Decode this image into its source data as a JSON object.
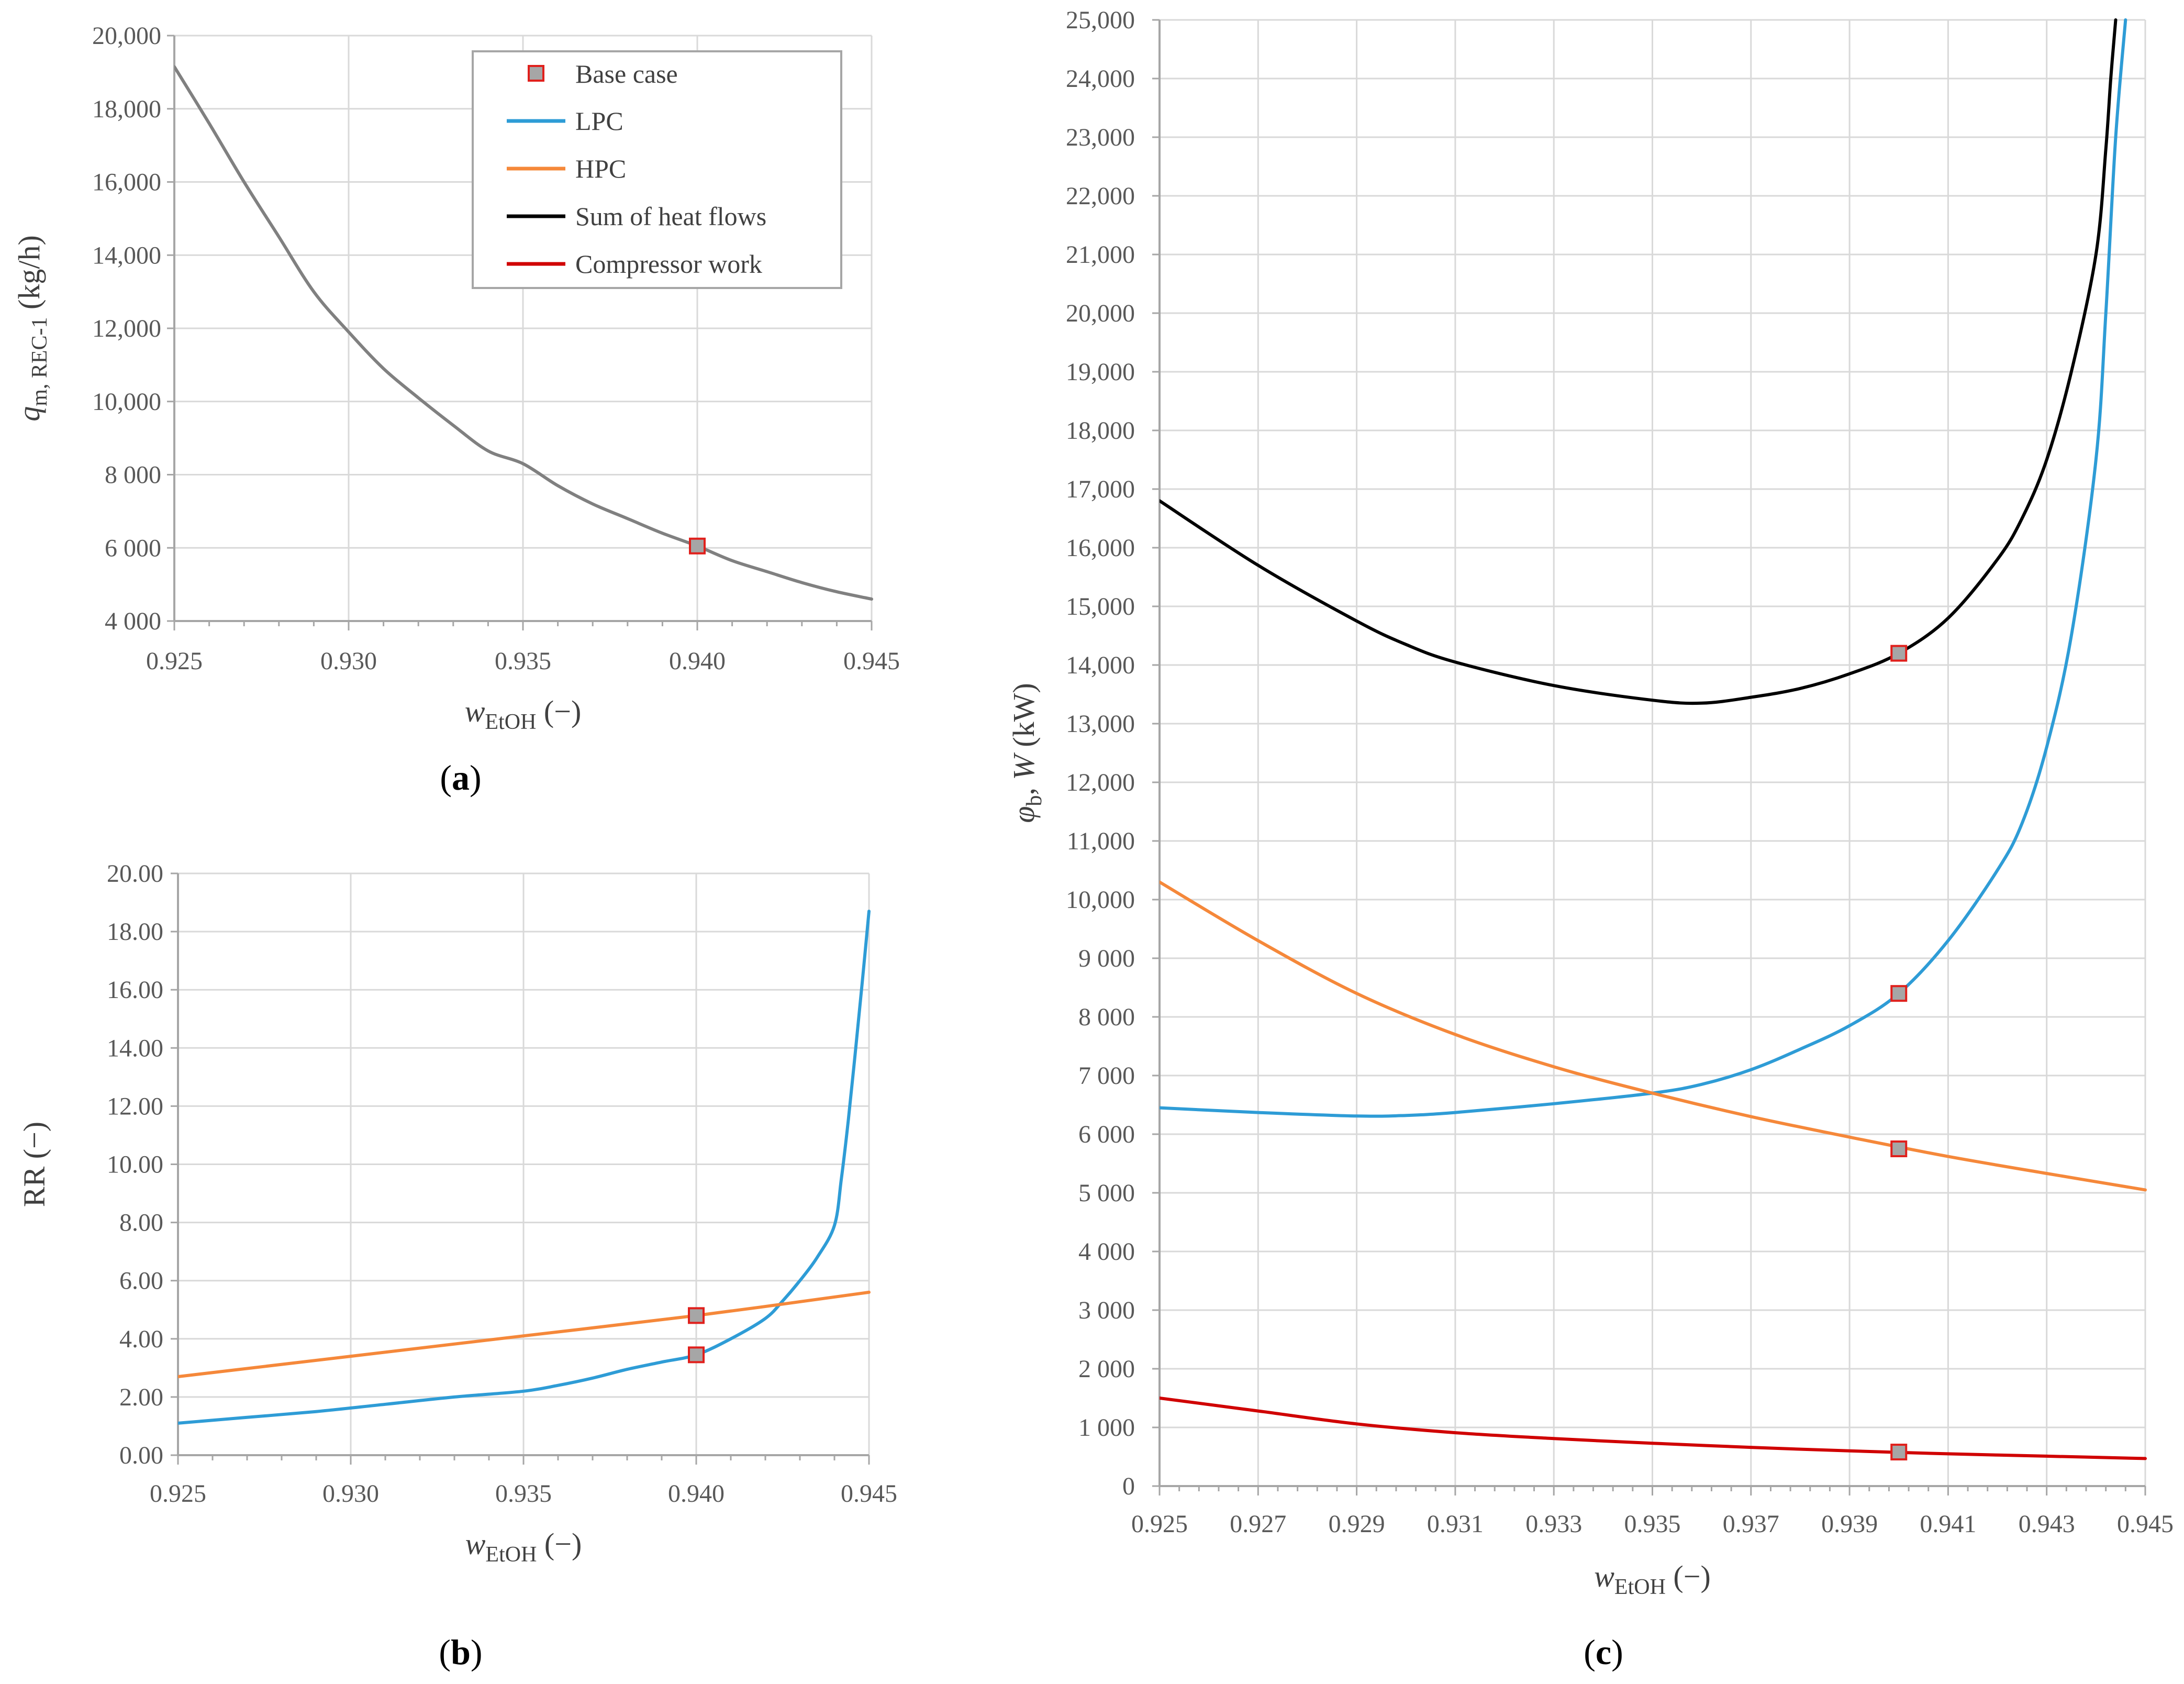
{
  "colors": {
    "lpc": "#2e9cd6",
    "hpc": "#f5883a",
    "sum": "#000000",
    "work": "#d00000",
    "qm": "#808080",
    "marker_fill": "#a6a6a6",
    "marker_edge": "#e0201c"
  },
  "panels": {
    "a": {
      "open": "(",
      "letter": "a",
      "close": ")"
    },
    "b": {
      "open": "(",
      "letter": "b",
      "close": ")"
    },
    "c": {
      "open": "(",
      "letter": "c",
      "close": ")"
    }
  },
  "legend": {
    "base_case": "Base case",
    "lpc": "LPC",
    "hpc": "HPC",
    "sum": "Sum of heat flows",
    "work": "Compressor work"
  },
  "chart_data": [
    {
      "id": "a",
      "type": "line",
      "title": "",
      "xlabel": {
        "main": "w",
        "sub": "EtOH",
        "unit": " (−)"
      },
      "ylabel": {
        "main": "q",
        "sub": "m, REC-1",
        "unit": " (kg/h)"
      },
      "xlim": [
        0.925,
        0.945
      ],
      "ylim": [
        4000,
        20000
      ],
      "xticks": [
        0.925,
        0.93,
        0.935,
        0.94,
        0.945
      ],
      "xtick_labels": [
        "0.925",
        "0.930",
        "0.935",
        "0.940",
        "0.945"
      ],
      "yticks": [
        4000,
        6000,
        8000,
        10000,
        12000,
        14000,
        16000,
        18000,
        20000
      ],
      "ytick_labels": [
        "4 000",
        "6 000",
        "8 000",
        "10,000",
        "12,000",
        "14,000",
        "16,000",
        "18,000",
        "20,000"
      ],
      "series": [
        {
          "name": "q_m,REC-1",
          "color_key": "qm",
          "x": [
            0.925,
            0.926,
            0.927,
            0.928,
            0.929,
            0.93,
            0.931,
            0.932,
            0.933,
            0.934,
            0.935,
            0.936,
            0.937,
            0.938,
            0.939,
            0.94,
            0.941,
            0.942,
            0.943,
            0.944,
            0.945
          ],
          "y": [
            19150,
            17600,
            16000,
            14500,
            13000,
            11900,
            10900,
            10100,
            9350,
            8650,
            8300,
            7700,
            7200,
            6800,
            6400,
            6050,
            5650,
            5350,
            5050,
            4800,
            4600
          ]
        }
      ],
      "base_case": [
        {
          "x": 0.94,
          "y": 6050
        }
      ]
    },
    {
      "id": "b",
      "type": "line",
      "title": "",
      "xlabel": {
        "main": "w",
        "sub": "EtOH",
        "unit": " (−)"
      },
      "ylabel": {
        "main": "RR",
        "sub": "",
        "unit": " (−)"
      },
      "xlim": [
        0.925,
        0.945
      ],
      "ylim": [
        0,
        20
      ],
      "xticks": [
        0.925,
        0.93,
        0.935,
        0.94,
        0.945
      ],
      "xtick_labels": [
        "0.925",
        "0.930",
        "0.935",
        "0.940",
        "0.945"
      ],
      "yticks": [
        0,
        2,
        4,
        6,
        8,
        10,
        12,
        14,
        16,
        18,
        20
      ],
      "ytick_labels": [
        "0.00",
        "2.00",
        "4.00",
        "6.00",
        "8.00",
        "10.00",
        "12.00",
        "14.00",
        "16.00",
        "18.00",
        "20.00"
      ],
      "series": [
        {
          "name": "LPC",
          "color_key": "lpc",
          "x": [
            0.925,
            0.927,
            0.929,
            0.931,
            0.933,
            0.935,
            0.936,
            0.937,
            0.938,
            0.939,
            0.94,
            0.941,
            0.942,
            0.9425,
            0.943,
            0.9435,
            0.944,
            0.9442,
            0.9444,
            0.9446,
            0.9448,
            0.945
          ],
          "y": [
            1.1,
            1.3,
            1.5,
            1.75,
            2.0,
            2.2,
            2.4,
            2.65,
            2.95,
            3.2,
            3.45,
            4.0,
            4.7,
            5.3,
            6.0,
            6.8,
            7.9,
            9.5,
            11.5,
            13.8,
            16.2,
            18.7
          ]
        },
        {
          "name": "HPC",
          "color_key": "hpc",
          "x": [
            0.925,
            0.93,
            0.935,
            0.94,
            0.945
          ],
          "y": [
            2.7,
            3.4,
            4.1,
            4.8,
            5.6
          ]
        }
      ],
      "base_case": [
        {
          "x": 0.94,
          "y": 4.8
        },
        {
          "x": 0.94,
          "y": 3.45
        }
      ]
    },
    {
      "id": "c",
      "type": "line",
      "title": "",
      "xlabel": {
        "main": "w",
        "sub": "EtOH",
        "unit": " (−)"
      },
      "ylabel": {
        "main": "φ",
        "sub": "b",
        "unit": ", W (kW)"
      },
      "xlim": [
        0.925,
        0.945
      ],
      "ylim": [
        0,
        25000
      ],
      "xticks": [
        0.925,
        0.927,
        0.929,
        0.931,
        0.933,
        0.935,
        0.937,
        0.939,
        0.941,
        0.943,
        0.945
      ],
      "xtick_labels": [
        "0.925",
        "0.927",
        "0.929",
        "0.931",
        "0.933",
        "0.935",
        "0.937",
        "0.939",
        "0.941",
        "0.943",
        "0.945"
      ],
      "yticks": [
        0,
        1000,
        2000,
        3000,
        4000,
        5000,
        6000,
        7000,
        8000,
        9000,
        10000,
        11000,
        12000,
        13000,
        14000,
        15000,
        16000,
        17000,
        18000,
        19000,
        20000,
        21000,
        22000,
        23000,
        24000,
        25000
      ],
      "ytick_labels": [
        "0",
        "1 000",
        "2 000",
        "3 000",
        "4 000",
        "5 000",
        "6 000",
        "7 000",
        "8 000",
        "9 000",
        "10,000",
        "11,000",
        "12,000",
        "13,000",
        "14,000",
        "15,000",
        "16,000",
        "17,000",
        "18,000",
        "19,000",
        "20,000",
        "21,000",
        "22,000",
        "23,000",
        "24,000",
        "25,000"
      ],
      "series": [
        {
          "name": "LPC",
          "color_key": "lpc",
          "x": [
            0.925,
            0.927,
            0.929,
            0.93,
            0.931,
            0.933,
            0.935,
            0.936,
            0.937,
            0.938,
            0.939,
            0.94,
            0.941,
            0.942,
            0.9425,
            0.943,
            0.9435,
            0.944,
            0.9442,
            0.9444,
            0.9446
          ],
          "y": [
            6450,
            6370,
            6310,
            6320,
            6370,
            6520,
            6700,
            6850,
            7100,
            7450,
            7850,
            8400,
            9300,
            10500,
            11300,
            12600,
            14500,
            17500,
            20000,
            23000,
            25000
          ]
        },
        {
          "name": "HPC",
          "color_key": "hpc",
          "x": [
            0.925,
            0.927,
            0.929,
            0.931,
            0.933,
            0.935,
            0.937,
            0.939,
            0.941,
            0.943,
            0.945
          ],
          "y": [
            10300,
            9300,
            8400,
            7700,
            7150,
            6700,
            6300,
            5950,
            5620,
            5330,
            5050
          ]
        },
        {
          "name": "Sum of heat flows",
          "color_key": "sum",
          "x": [
            0.925,
            0.927,
            0.929,
            0.93,
            0.931,
            0.933,
            0.935,
            0.936,
            0.937,
            0.938,
            0.939,
            0.94,
            0.941,
            0.942,
            0.9425,
            0.943,
            0.9435,
            0.944,
            0.9442,
            0.9443,
            0.9444
          ],
          "y": [
            16800,
            15700,
            14750,
            14350,
            14050,
            13650,
            13400,
            13350,
            13450,
            13600,
            13850,
            14200,
            14800,
            15800,
            16500,
            17500,
            19000,
            21000,
            22800,
            24000,
            25000
          ]
        },
        {
          "name": "Compressor work",
          "color_key": "work",
          "x": [
            0.925,
            0.927,
            0.929,
            0.931,
            0.933,
            0.935,
            0.937,
            0.939,
            0.941,
            0.943,
            0.945
          ],
          "y": [
            1500,
            1280,
            1060,
            910,
            810,
            730,
            660,
            600,
            550,
            510,
            470
          ]
        }
      ],
      "base_case": [
        {
          "x": 0.94,
          "y": 14200
        },
        {
          "x": 0.94,
          "y": 8400
        },
        {
          "x": 0.94,
          "y": 5750
        },
        {
          "x": 0.94,
          "y": 580
        }
      ]
    }
  ]
}
